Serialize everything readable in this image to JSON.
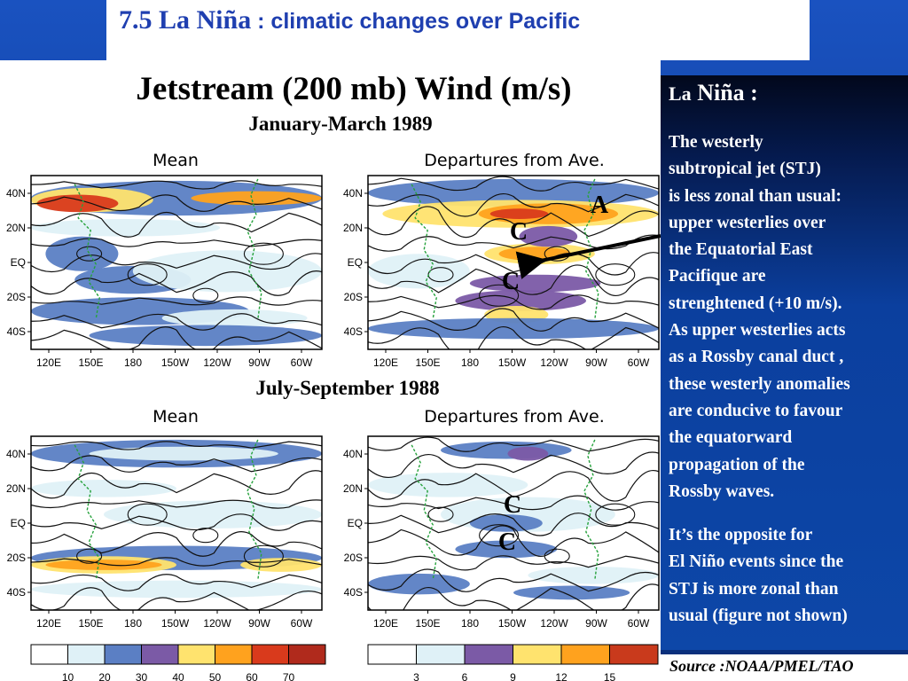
{
  "slide": {
    "title_number": "7.5",
    "title_main": "La Niña",
    "title_sub": ": climatic changes over Pacific",
    "source": "Source :NOAA/PMEL/TAO"
  },
  "figure": {
    "title": "Jetstream (200 mb) Wind (m/s)",
    "period_top": "January-March 1989",
    "period_bottom": "July-September 1988",
    "panel_mean": "Mean",
    "panel_departures": "Departures from Ave.",
    "lat_labels": [
      "40N",
      "20N",
      "EQ",
      "20S",
      "40S"
    ],
    "lon_labels": [
      "120E",
      "150E",
      "180",
      "150W",
      "120W",
      "90W",
      "60W"
    ],
    "mean_legend": [
      "10",
      "20",
      "30",
      "40",
      "50",
      "60",
      "70"
    ],
    "departure_legend": [
      "3",
      "6",
      "9",
      "12",
      "15"
    ],
    "legend_colors": [
      "#ffffff",
      "#dff1f7",
      "#5b7fc4",
      "#7b5aa6",
      "#ffe36e",
      "#ffa21e",
      "#d93a1c"
    ],
    "markers": [
      "A",
      "C",
      "C",
      "C",
      "C"
    ]
  },
  "note": {
    "title_prefix": "La",
    "title_main": "Niña :",
    "paragraph1": [
      "The westerly",
      "subtropical  jet (STJ)",
      "is less zonal than usual:",
      "upper westerlies over",
      "the Equatorial East",
      "Pacifique are",
      "strenghtened (+10 m/s).",
      "As upper westerlies acts",
      "as a Rossby canal duct ,",
      "these westerly anomalies",
      "are conducive to favour",
      "the equatorward",
      "propagation of the",
      "Rossby waves."
    ],
    "paragraph2": [
      "It’s the opposite for",
      "El Niño events since the",
      "STJ is more zonal than",
      "usual (figure not shown)"
    ]
  }
}
